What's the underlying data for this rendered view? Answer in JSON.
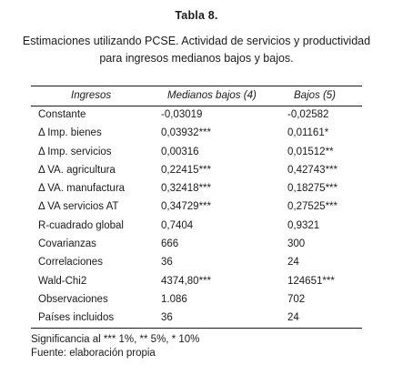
{
  "table": {
    "title": "Tabla 8.",
    "caption_line1": "Estimaciones utilizando PCSE. Actividad de servicios y productividad",
    "caption_line2": "para ingresos medianos bajos y bajos.",
    "columns": [
      "Ingresos",
      "Medianos bajos (4)",
      "Bajos (5)"
    ],
    "rows": [
      [
        "Constante",
        "-0,03019",
        "-0,02582"
      ],
      [
        "Δ Imp. bienes",
        "0,03932***",
        "0,01161*"
      ],
      [
        "Δ Imp. servicios",
        "0,00316",
        "0,01512**"
      ],
      [
        "Δ VA. agricultura",
        "0,22415***",
        "0,42743***"
      ],
      [
        "Δ VA. manufactura",
        "0,32418***",
        "0,18275***"
      ],
      [
        "Δ VA servicios AT",
        "0,34729***",
        "0,27525***"
      ],
      [
        "R-cuadrado global",
        "0,7404",
        "0,9321"
      ],
      [
        "Covarianzas",
        "666",
        "300"
      ],
      [
        "Correlaciones",
        "36",
        "24"
      ],
      [
        "Wald-Chi2",
        "4374,80***",
        "124651***"
      ],
      [
        "Observaciones",
        "1.086",
        "702"
      ],
      [
        "Países incluidos",
        "36",
        "24"
      ]
    ],
    "note_significance": "Significancia al *** 1%, ** 5%, * 10%",
    "note_source": "Fuente: elaboración propia"
  }
}
